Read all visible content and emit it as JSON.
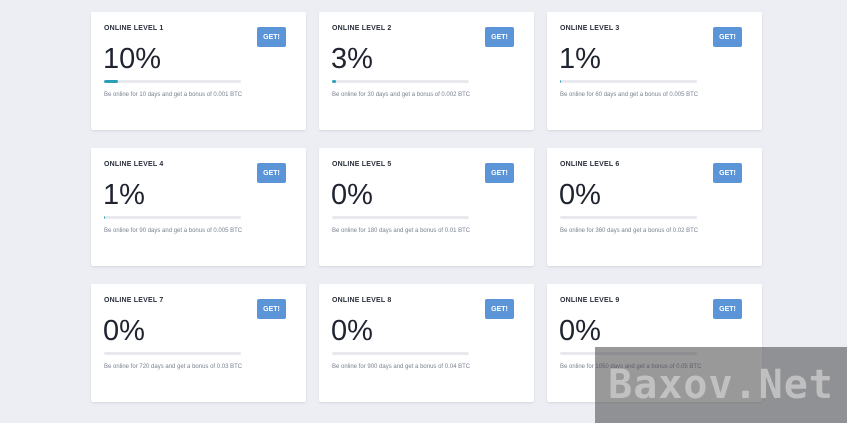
{
  "levels": [
    {
      "title": "ONLINE LEVEL 1",
      "percent": "10%",
      "progress": 0.1,
      "desc": "Be online for 10 days and get a bonus of 0.001 BTC",
      "button": "GET!"
    },
    {
      "title": "ONLINE LEVEL 2",
      "percent": "3%",
      "progress": 0.03,
      "desc": "Be online for 30 days and get a bonus of 0.002 BTC",
      "button": "GET!"
    },
    {
      "title": "ONLINE LEVEL 3",
      "percent": "1%",
      "progress": 0.01,
      "desc": "Be online for 60 days and get a bonus of 0.005 BTC",
      "button": "GET!"
    },
    {
      "title": "ONLINE LEVEL 4",
      "percent": "1%",
      "progress": 0.01,
      "desc": "Be online for 90 days and get a bonus of 0.005 BTC",
      "button": "GET!"
    },
    {
      "title": "ONLINE LEVEL 5",
      "percent": "0%",
      "progress": 0,
      "desc": "Be online for 180 days and get a bonus of 0.01 BTC",
      "button": "GET!"
    },
    {
      "title": "ONLINE LEVEL 6",
      "percent": "0%",
      "progress": 0,
      "desc": "Be online for 360 days and get a bonus of 0.02 BTC",
      "button": "GET!"
    },
    {
      "title": "ONLINE LEVEL 7",
      "percent": "0%",
      "progress": 0,
      "desc": "Be online for 720 days and get a bonus of 0.03 BTC",
      "button": "GET!"
    },
    {
      "title": "ONLINE LEVEL 8",
      "percent": "0%",
      "progress": 0,
      "desc": "Be online for 900 days and get a bonus of 0.04 BTC",
      "button": "GET!"
    },
    {
      "title": "ONLINE LEVEL 9",
      "percent": "0%",
      "progress": 0,
      "desc": "Be online for 1050 days and get a bonus of 0.05 BTC",
      "button": "GET!"
    }
  ],
  "watermark": {
    "text": "Baxov.Net"
  },
  "colors": {
    "button": "#5b95d8",
    "progress": "#2aa0b8",
    "background": "#eceef3"
  }
}
